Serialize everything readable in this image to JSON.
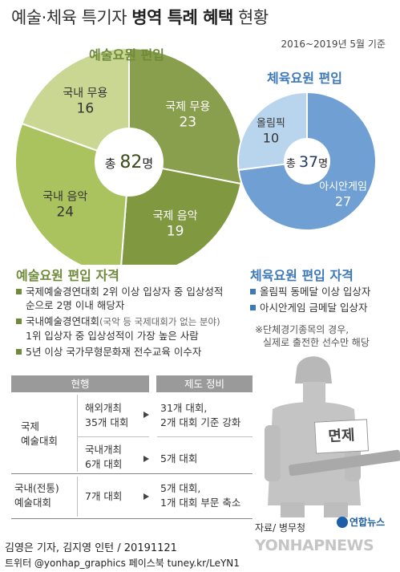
{
  "header": {
    "title_regular": "예술·체육 특기자",
    "title_bold": "병역 특례 혜택",
    "title_end": "현황",
    "period": "2016~2019년 5월 기준"
  },
  "chart_data": [
    {
      "type": "pie",
      "title": "예술요원 편입",
      "categories": [
        "국제 무용",
        "국제 음악",
        "국내 음악",
        "국내 무용"
      ],
      "values": [
        23,
        19,
        24,
        16
      ],
      "colors": [
        "#8a9f4e",
        "#809840",
        "#aac35f",
        "#c9d792"
      ],
      "center_label": {
        "prefix": "총",
        "value": "82",
        "unit": "명"
      }
    },
    {
      "type": "pie",
      "title": "체육요원 편입",
      "categories": [
        "아시안게임",
        "올림픽"
      ],
      "values": [
        27,
        10
      ],
      "colors": [
        "#6f9fd3",
        "#b9d5ee"
      ],
      "center_label": {
        "prefix": "총",
        "value": "37",
        "unit": "명"
      }
    }
  ],
  "arts_requirements": {
    "heading": "예술요원 편입 자격",
    "items": [
      {
        "line1": "국제예술경연대회 2위 이상 입상자 중 입상성적",
        "line2": "순으로 2명 이내 해당자"
      },
      {
        "line1a": "국내예술경연대회",
        "line1b": "(국악 등 국제대회가 없는 분야)",
        "line2": "1위 입상자 중 입상성적이 가장 높은 사람"
      },
      {
        "line1": "5년 이상 국가무형문화재 전수교육 이수자"
      }
    ]
  },
  "sports_requirements": {
    "heading": "체육요원 편입 자격",
    "items": [
      "올림픽 동메달 이상 입상자",
      "아시안게임 금메달 입상자"
    ],
    "note_line1": "※단체경기종목의 경우,",
    "note_line2": "실제로 출전한 선수만 해당"
  },
  "table": {
    "header_current": "현행",
    "header_reform": "제도 정비",
    "row_intl_label_1": "국제",
    "row_intl_label_2": "예술대회",
    "overseas_1": "해외개최",
    "overseas_2": "35개 대회",
    "overseas_reform_1": "31개 대회,",
    "overseas_reform_2": "2개 대회 기준 강화",
    "domestic_1": "국내개최",
    "domestic_2": "6개 대회",
    "domestic_reform": "5개 대회",
    "row_dom_label_1": "국내(전통)",
    "row_dom_label_2": "예술대회",
    "dom_current": "7개 대회",
    "dom_reform_1": "5개 대회,",
    "dom_reform_2": "1개 대회 부문 축소"
  },
  "illustration": {
    "badge": "면제"
  },
  "footer": {
    "source": "자료/ 병무청",
    "logo": "연합뉴스",
    "watermark": "YONHAPNEWS",
    "credit": "김영은 기자, 김지영 인턴 / 20191121",
    "credit2": "트위터 @yonhap_graphics  페이스북 tuney.kr/LeYN1"
  }
}
